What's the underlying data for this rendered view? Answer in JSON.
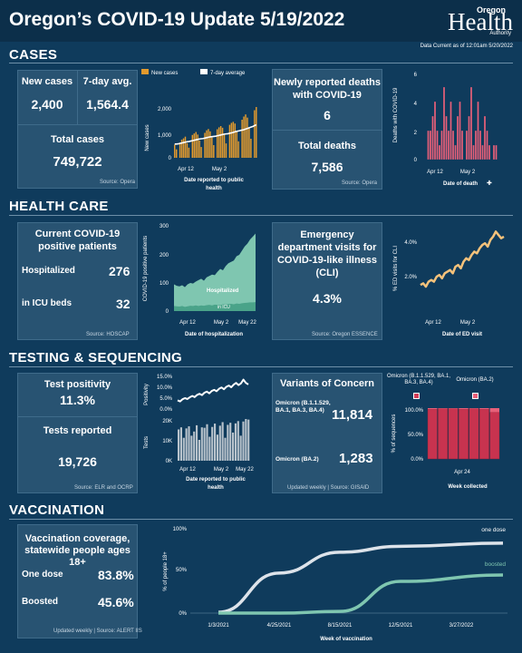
{
  "header": {
    "title": "Oregon’s COVID-19 Update 5/19/2022",
    "logo_small": "Oregon",
    "logo_main": "Health",
    "logo_sub": "Authority",
    "data_current": "Data Current as of 12:01am 5/20/2022"
  },
  "colors": {
    "background": "#0f3b5c",
    "card": "#285372",
    "orange": "#e39a2d",
    "pink": "#e86079",
    "teal": "#7fc6b0",
    "peach": "#f5c27b"
  },
  "cases": {
    "section": "CASES",
    "new_label": "New cases",
    "new_value": "2,400",
    "avg_label": "7-day avg.",
    "avg_value": "1,564.4",
    "total_label": "Total cases",
    "total_value": "749,722",
    "source": "Source: Opera",
    "legend_new": "New cases",
    "legend_avg": "7-day average",
    "chart_ylabel": "New cases",
    "chart_xlabel": "Date reported to public health",
    "y_ticks": [
      "2,000",
      "1,000",
      "0"
    ],
    "x_ticks": [
      "Apr 12",
      "May 2"
    ],
    "deaths_label": "Newly reported deaths with COVID-19",
    "deaths_value": "6",
    "total_deaths_label": "Total deaths",
    "total_deaths_value": "7,586",
    "deaths_source": "Source: Opera",
    "deaths_ylabel": "Deaths with COVID-19",
    "deaths_xlabel": "Date of death",
    "deaths_y_ticks": [
      "6",
      "4",
      "2",
      "0"
    ],
    "deaths_x_ticks": [
      "Apr 12",
      "May 2"
    ]
  },
  "health": {
    "section": "HEALTH CARE",
    "current_label": "Current COVID-19 positive patients",
    "hosp_label": "Hospitalized",
    "hosp_value": "276",
    "icu_label": "in ICU beds",
    "icu_value": "32",
    "source": "Source: HOSCAP",
    "chart_ylabel": "COVID-19 positive patients",
    "chart_xlabel": "Date of hospitalization",
    "y_ticks": [
      "300",
      "200",
      "100",
      "0"
    ],
    "x_ticks": [
      "Apr 12",
      "May 2",
      "May 22"
    ],
    "area_hosp": "Hospitalized",
    "area_icu": "in ICU",
    "ed_label": "Emergency department visits for COVID-19-like illness (CLI)",
    "ed_value": "4.3%",
    "ed_source": "Source: Oregon ESSENCE",
    "ed_ylabel": "% ED visits for CLI",
    "ed_xlabel": "Date of ED visit",
    "ed_y_ticks": [
      "4.0%",
      "2.0%"
    ],
    "ed_x_ticks": [
      "Apr 12",
      "May 2"
    ]
  },
  "testing": {
    "section": "TESTING & SEQUENCING",
    "pos_label": "Test positivity",
    "pos_value": "11.3%",
    "tests_label": "Tests reported",
    "tests_value": "19,726",
    "source": "Source: ELR and OCRP",
    "pos_ylabel": "Positivity",
    "pos_ticks": [
      "15.0%",
      "10.0%",
      "5.0%",
      "0.0%"
    ],
    "tests_ylabel": "Tests",
    "tests_ticks": [
      "20K",
      "10K",
      "0K"
    ],
    "x_ticks": [
      "Apr 12",
      "May 2",
      "May 22"
    ],
    "xlabel": "Date reported to public health",
    "voc_title": "Variants of Concern",
    "voc1_label": "Omicron (B.1.1.529, BA.1, BA.3, BA.4)",
    "voc1_value": "11,814",
    "voc2_label": "Omicron (BA.2)",
    "voc2_value": "1,283",
    "voc_source": "Updated weekly | Source: GISAID",
    "leg1": "Omicron (B.1.1.529, BA.1, BA.3, BA.4)",
    "leg2": "Omicron (BA.2)",
    "seq_ylabel": "% of sequences",
    "seq_ticks": [
      "100.0%",
      "50.0%",
      "0.0%"
    ],
    "seq_xtick": "Apr 24",
    "seq_xlabel": "Week collected"
  },
  "vaccination": {
    "section": "VACCINATION",
    "cov_label": "Vaccination coverage, statewide people ages 18+",
    "one_label": "One dose",
    "one_value": "83.8%",
    "boost_label": "Boosted",
    "boost_value": "45.6%",
    "source": "Updated weekly | Source: ALERT IIS",
    "ylabel": "% of people 18+",
    "y_ticks": [
      "100%",
      "50%",
      "0%"
    ],
    "x_ticks": [
      "1/3/2021",
      "4/25/2021",
      "8/15/2021",
      "12/5/2021",
      "3/27/2022"
    ],
    "xlabel": "Week of vaccination",
    "series_one": "one dose",
    "series_boost": "boosted"
  },
  "chart_data": [
    {
      "type": "bar",
      "title": "",
      "xlabel": "Date reported to public health",
      "ylabel": "New cases",
      "ylim": [
        0,
        2400
      ],
      "series": [
        {
          "name": "New cases",
          "values": [
            620,
            400,
            0,
            720,
            860,
            920,
            1000,
            700,
            480,
            0,
            1080,
            1150,
            1220,
            1100,
            820,
            510,
            0,
            1180,
            1300,
            1360,
            1250,
            960,
            600,
            0,
            1350,
            1440,
            1500,
            1420,
            1100,
            680,
            0,
            1560,
            1650,
            1700,
            1620,
            1250,
            780,
            0,
            1800,
            1950,
            2050,
            1900,
            1400,
            900,
            0,
            2250,
            2400
          ]
        },
        {
          "name": "7-day average",
          "values": [
            650,
            650,
            660,
            680,
            700,
            720,
            740,
            760,
            770,
            790,
            810,
            830,
            850,
            870,
            890,
            900,
            910,
            930,
            950,
            970,
            990,
            1000,
            1010,
            1020,
            1040,
            1060,
            1080,
            1100,
            1120,
            1130,
            1140,
            1160,
            1180,
            1200,
            1230,
            1250,
            1270,
            1290,
            1310,
            1330,
            1360,
            1390,
            1420,
            1450,
            1480,
            1520,
            1564
          ]
        }
      ],
      "x_ticks": [
        "Apr 12",
        "May 2"
      ]
    },
    {
      "type": "bar",
      "title": "",
      "xlabel": "Date of death",
      "ylabel": "Deaths with COVID-19",
      "ylim": [
        0,
        6
      ],
      "values": [
        0,
        0,
        0,
        2,
        2,
        3,
        4,
        2,
        1,
        2,
        5,
        3,
        2,
        4,
        2,
        1,
        3,
        4,
        2,
        0,
        2,
        3,
        5,
        1,
        2,
        4,
        2,
        1,
        3,
        2,
        1,
        0,
        1,
        1,
        0,
        0
      ],
      "x_ticks": [
        "Apr 12",
        "May 2"
      ]
    },
    {
      "type": "area",
      "title": "",
      "xlabel": "Date of hospitalization",
      "ylabel": "COVID-19 positive patients",
      "ylim": [
        0,
        300
      ],
      "series": [
        {
          "name": "Hospitalized",
          "values": [
            95,
            90,
            88,
            92,
            85,
            95,
            100,
            98,
            105,
            110,
            115,
            108,
            120,
            125,
            130,
            128,
            140,
            150,
            145,
            160,
            170,
            175,
            180,
            195,
            200,
            215,
            230,
            240,
            255,
            265,
            276
          ]
        },
        {
          "name": "in ICU",
          "values": [
            18,
            17,
            16,
            18,
            15,
            17,
            19,
            18,
            20,
            18,
            20,
            19,
            21,
            22,
            20,
            23,
            22,
            21,
            24,
            23,
            25,
            26,
            24,
            27,
            26,
            28,
            29,
            30,
            31,
            31,
            32
          ]
        }
      ],
      "x_ticks": [
        "Apr 12",
        "May 2",
        "May 22"
      ]
    },
    {
      "type": "line",
      "title": "",
      "xlabel": "Date of ED visit",
      "ylabel": "% ED visits for CLI",
      "ylim": [
        0,
        5
      ],
      "series": [
        {
          "name": "",
          "values": [
            1.4,
            1.5,
            1.3,
            1.6,
            1.7,
            1.6,
            1.9,
            2.0,
            1.8,
            2.1,
            2.2,
            2.3,
            2.1,
            2.5,
            2.6,
            2.4,
            2.8,
            3.0,
            2.9,
            3.2,
            3.4,
            3.3,
            3.6,
            3.8,
            3.9,
            3.7,
            4.1,
            4.3,
            4.6,
            4.4,
            4.2,
            4.3
          ]
        }
      ],
      "x_ticks": [
        "Apr 12",
        "May 2"
      ]
    },
    {
      "type": "line",
      "title": "",
      "ylabel": "Positivity",
      "ylim": [
        0,
        15
      ],
      "series": [
        {
          "name": "",
          "values": [
            4.0,
            3.5,
            4.5,
            5.0,
            4.6,
            5.4,
            6.0,
            5.5,
            6.5,
            7.0,
            6.4,
            7.5,
            8.0,
            7.2,
            8.3,
            8.8,
            8.2,
            9.3,
            9.9,
            9.1,
            10.2,
            10.8,
            10.0,
            11.2,
            12.0,
            11.0,
            11.8,
            13.5,
            12.0,
            11.3
          ]
        }
      ],
      "x_ticks": [
        "Apr 12",
        "May 2",
        "May 22"
      ]
    },
    {
      "type": "bar",
      "title": "",
      "xlabel": "Date reported to public health",
      "ylabel": "Tests",
      "ylim": [
        0,
        20000
      ],
      "values": [
        15000,
        16000,
        11000,
        15500,
        16500,
        12000,
        14000,
        17000,
        10000,
        16000,
        15800,
        17500,
        11500,
        16200,
        17800,
        12500,
        16800,
        18500,
        11000,
        17200,
        18200,
        13500,
        17900,
        19000,
        12000,
        18800,
        20000,
        19726
      ],
      "x_ticks": [
        "Apr 12",
        "May 2",
        "May 22"
      ]
    },
    {
      "type": "bar",
      "title": "",
      "xlabel": "Week collected",
      "ylabel": "% of sequences",
      "ylim": [
        0,
        100
      ],
      "series": [
        {
          "name": "Omicron (B.1.1.529, BA.1, BA.3, BA.4)",
          "values": [
            98,
            99,
            99,
            98,
            99,
            98,
            92
          ]
        },
        {
          "name": "Omicron (BA.2)",
          "values": [
            2,
            1,
            1,
            2,
            1,
            2,
            8
          ]
        }
      ],
      "x_ticks": [
        "Apr 24"
      ]
    },
    {
      "type": "line",
      "title": "",
      "xlabel": "Week of vaccination",
      "ylabel": "% of people 18+",
      "ylim": [
        0,
        100
      ],
      "x": [
        "1/3/2021",
        "4/25/2021",
        "8/15/2021",
        "12/5/2021",
        "3/27/2022"
      ],
      "series": [
        {
          "name": "one dose",
          "values": [
            1,
            48,
            73,
            80,
            83.8
          ]
        },
        {
          "name": "boosted",
          "values": [
            0,
            0,
            2,
            38,
            45.6
          ]
        }
      ]
    }
  ]
}
